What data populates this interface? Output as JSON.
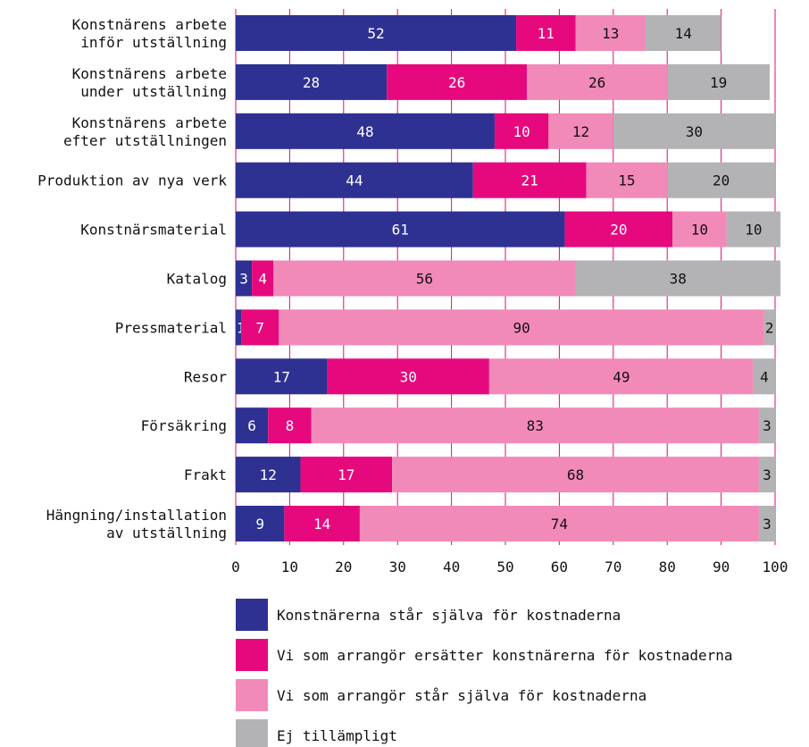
{
  "chart_data": {
    "type": "bar",
    "orientation": "horizontal",
    "stacked": true,
    "categories": [
      [
        "Konstnärens arbete",
        "inför utställning"
      ],
      [
        "Konstnärens arbete",
        "under utställning"
      ],
      [
        "Konstnärens arbete",
        "efter utställningen"
      ],
      [
        "Produktion av nya verk"
      ],
      [
        "Konstnärsmaterial"
      ],
      [
        "Katalog"
      ],
      [
        "Pressmaterial"
      ],
      [
        "Resor"
      ],
      [
        "Försäkring"
      ],
      [
        "Frakt"
      ],
      [
        "Hängning/installation",
        "av utställning"
      ]
    ],
    "series": [
      {
        "name": "Konstnärerna står själva för kostnaderna",
        "color": "#2e3192",
        "label_color": "#ffffff",
        "values": [
          52,
          28,
          48,
          44,
          61,
          3,
          1,
          17,
          6,
          12,
          9
        ]
      },
      {
        "name": "Vi som arrangör ersätter konstnärerna för kostnaderna",
        "color": "#e6097d",
        "label_color": "#ffffff",
        "values": [
          11,
          26,
          10,
          21,
          20,
          4,
          7,
          30,
          8,
          17,
          14
        ]
      },
      {
        "name": "Vi som arrangör står själva för kostnaderna",
        "color": "#f28ab9",
        "label_color": "#111111",
        "values": [
          13,
          26,
          12,
          15,
          10,
          56,
          90,
          49,
          83,
          68,
          74
        ]
      },
      {
        "name": "Ej tillämpligt",
        "color": "#b3b3b5",
        "label_color": "#111111",
        "values": [
          14,
          19,
          30,
          20,
          10,
          38,
          2,
          4,
          3,
          3,
          3
        ]
      }
    ],
    "x_ticks": [
      0,
      10,
      20,
      30,
      40,
      50,
      60,
      70,
      80,
      90,
      100
    ],
    "xlim": [
      0,
      100
    ],
    "grid": true,
    "grid_color": "#e6097d",
    "legend_position": "bottom"
  }
}
